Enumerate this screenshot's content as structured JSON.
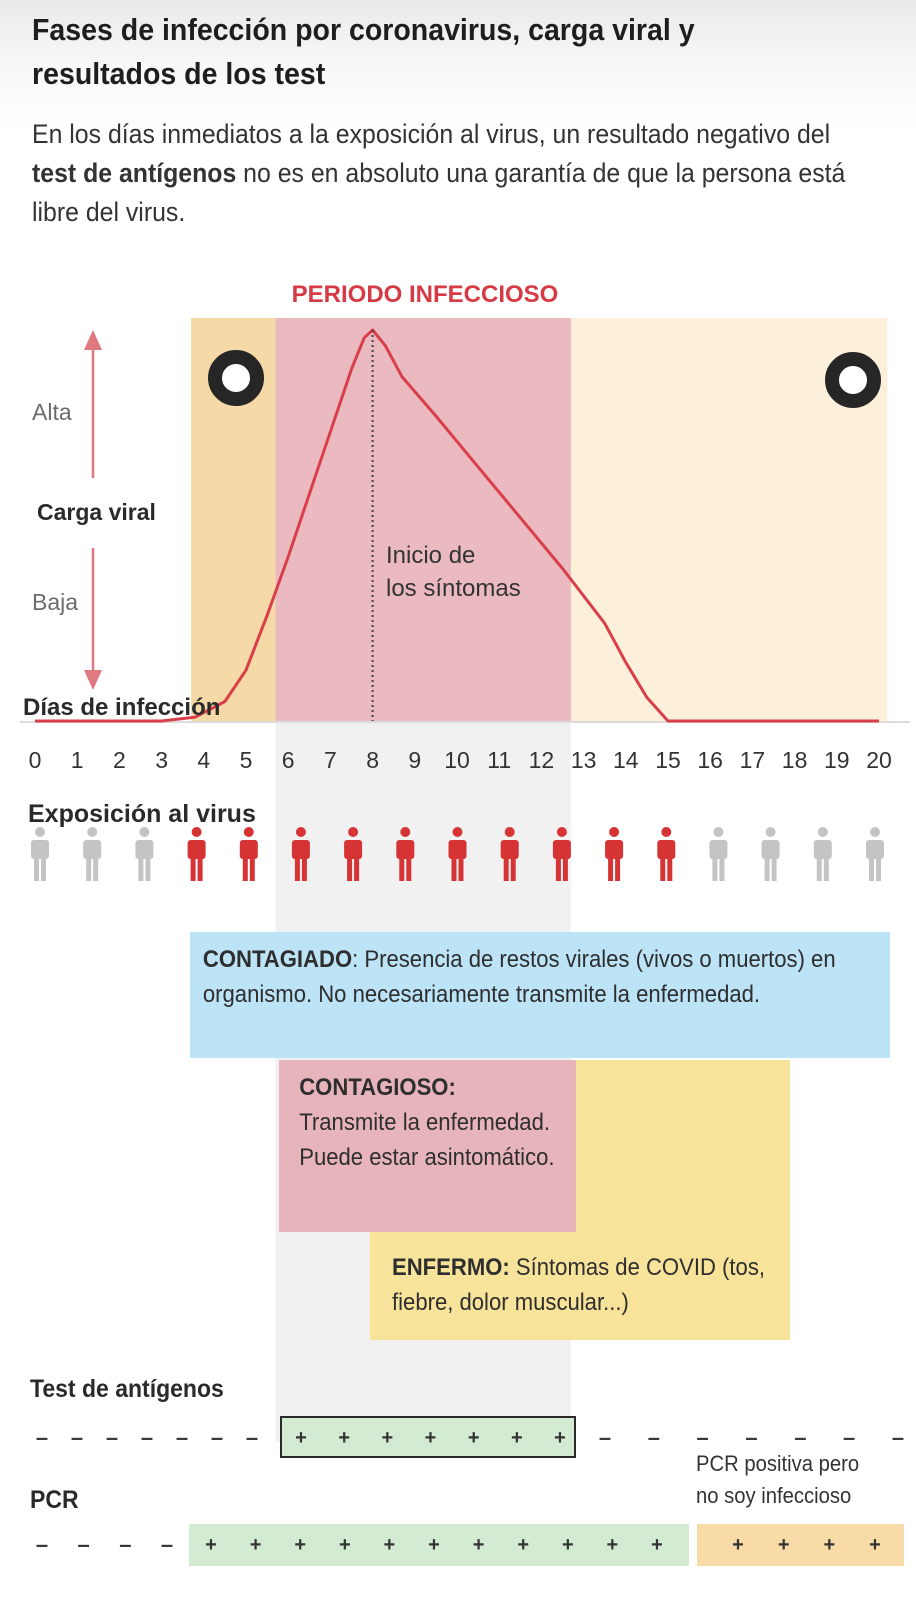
{
  "header": {
    "title": "Fases de infección por coronavirus, carga viral y resultados de los test",
    "subtitle_pre": "En los días inmediatos a la exposición al virus, un resultado negativo del ",
    "subtitle_bold": "test de antígenos",
    "subtitle_post": " no es en absoluto una garantía de que la persona está libre del virus."
  },
  "colors": {
    "orange_band": "#f5d9a6",
    "infectious_band": "#ebb9c0",
    "late_band": "#fdf0db",
    "curve": "#d93f4a",
    "infected_person": "#d63335",
    "healthy_person": "#c4c4c4",
    "contagiado_box": "#bde3f7",
    "contagioso_box": "#e8b4bc",
    "enfermo_box": "#f8e39b",
    "test_positive": "#d3ebd3",
    "pcr_not_infectious": "#f8dba6"
  },
  "chart_data": {
    "type": "line",
    "xlabel": "Días de infección",
    "ylabel": "Carga viral",
    "y_high_label": "Alta",
    "y_low_label": "Baja",
    "x_ticks": [
      0,
      1,
      2,
      3,
      4,
      5,
      6,
      7,
      8,
      9,
      10,
      11,
      12,
      13,
      14,
      15,
      16,
      17,
      18,
      19,
      20
    ],
    "xlim": [
      0,
      20
    ],
    "ylim": [
      0,
      1
    ],
    "series": [
      {
        "x": [
          0,
          3,
          3.8,
          4.5,
          5,
          5.5,
          6,
          6.5,
          7,
          7.5,
          7.8,
          8,
          8.3,
          8.7,
          9.5,
          10.5,
          11.5,
          12.5,
          13.5,
          14,
          14.5,
          15,
          16,
          17,
          18,
          19,
          20
        ],
        "y": [
          0,
          0,
          0.01,
          0.05,
          0.13,
          0.27,
          0.42,
          0.58,
          0.74,
          0.9,
          0.98,
          1,
          0.96,
          0.88,
          0.78,
          0.65,
          0.52,
          0.39,
          0.25,
          0.15,
          0.06,
          0,
          0,
          0,
          0,
          0,
          0
        ]
      }
    ],
    "bands": [
      {
        "from": 3.7,
        "to": 5.7,
        "kind": "exposure"
      },
      {
        "from": 5.7,
        "to": 12.7,
        "kind": "infectious",
        "label": "PERIODO INFECCIOSO"
      },
      {
        "from": 12.7,
        "to": 20.2,
        "kind": "late"
      }
    ],
    "symptom_onset": {
      "day": 8,
      "label_line1": "Inicio de",
      "label_line2": "los síntomas"
    },
    "exposure": {
      "label": "Exposición al virus",
      "people": [
        "healthy",
        "healthy",
        "healthy",
        "infected",
        "infected",
        "infected",
        "infected",
        "infected",
        "infected",
        "infected",
        "infected",
        "infected",
        "infected",
        "healthy",
        "healthy",
        "healthy",
        "healthy"
      ]
    }
  },
  "states": {
    "contagiado": {
      "title": "CONTAGIADO",
      "text": ": Presencia de restos virales (vivos o muertos) en organismo. No necesariamente transmite la enfermedad."
    },
    "contagioso": {
      "title": "CONTAGIOSO:",
      "text": "Transmite la enfermedad. Puede estar asintomático."
    },
    "enfermo": {
      "title": "ENFERMO:",
      "text": " Síntomas de COVID (tos, fiebre, dolor muscular...)"
    }
  },
  "tests": {
    "antigen": {
      "label": "Test de antígenos",
      "negative_before": 7,
      "positive": 7,
      "negative_after": 7
    },
    "pcr": {
      "label": "PCR",
      "negative_before": 4,
      "positive": 11,
      "positive_not_infectious": 4,
      "note_line1": "PCR positiva pero",
      "note_line2": "no soy infeccioso"
    }
  }
}
